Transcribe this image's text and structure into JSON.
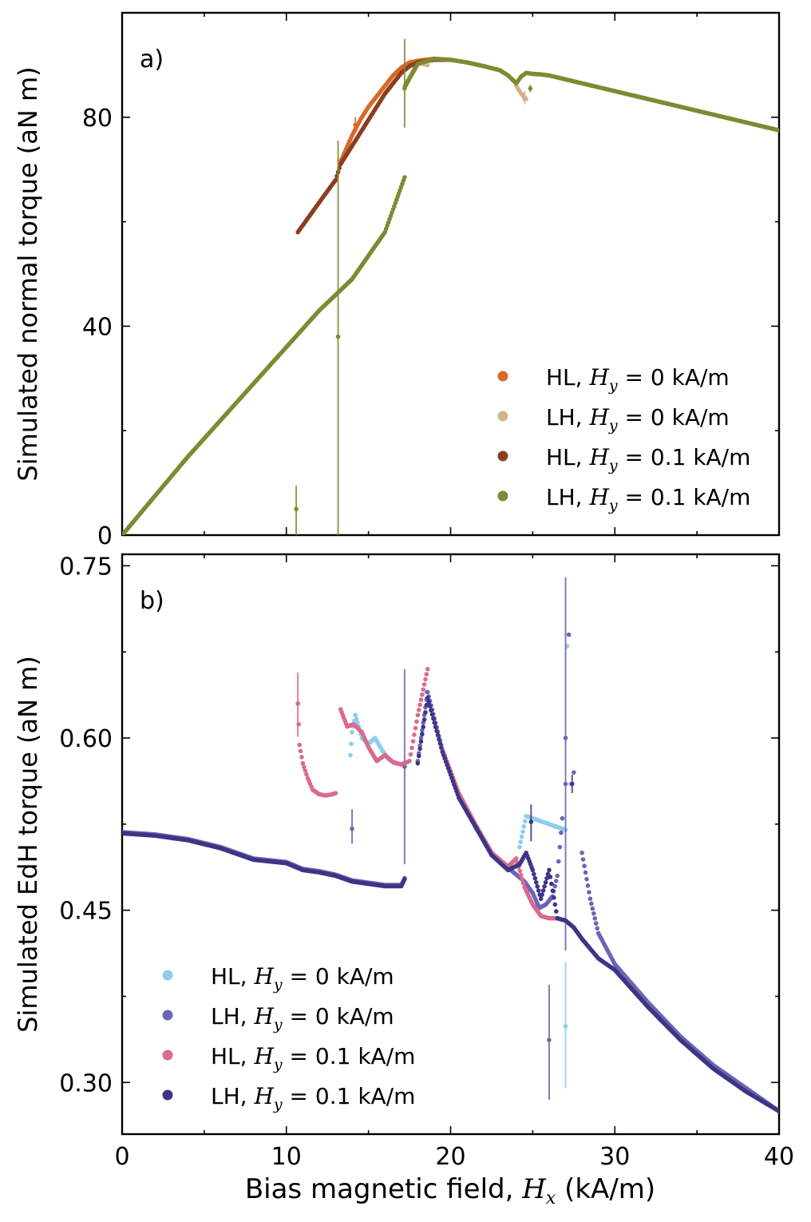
{
  "chart_data": [
    {
      "type": "scatter",
      "panel_label": "a)",
      "ylabel": "Simulated normal torque (aN m)",
      "xlim": [
        0,
        40
      ],
      "ylim": [
        0,
        100
      ],
      "yticks": [
        0,
        40,
        80
      ],
      "legend_position": "lower-right",
      "series": [
        {
          "name": "HL, H_y = 0 kA/m",
          "label_prefix": "HL, ",
          "label_suffix": " = 0 kA/m",
          "color": "#d9692a",
          "x": [
            13.3,
            14.0,
            14.5,
            15.0,
            15.5,
            16.0,
            16.5,
            17.0,
            17.5,
            18.0,
            18.5,
            19.0
          ],
          "y": [
            71.5,
            76.5,
            79.5,
            82.0,
            84.0,
            86.0,
            88.0,
            89.5,
            90.5,
            90.8,
            91.0,
            91.2
          ],
          "errorbars": [
            {
              "x": 14.2,
              "y": 78.5,
              "lo": 77,
              "hi": 80
            }
          ]
        },
        {
          "name": "LH, H_y = 0 kA/m",
          "label_prefix": "LH, ",
          "label_suffix": " = 0 kA/m",
          "color": "#d2b48c",
          "x": [
            17.2,
            18.0,
            18.6,
            24.0,
            24.3,
            24.6
          ],
          "y": [
            86.0,
            90.5,
            90.0,
            86.0,
            84.5,
            83.5
          ],
          "errorbars": [
            {
              "x": 24.5,
              "y": 83.5,
              "lo": 82.5,
              "hi": 85.0
            }
          ]
        },
        {
          "name": "HL, H_y = 0.1 kA/m",
          "label_prefix": "HL, ",
          "label_suffix": " = 0.1 kA/m",
          "color": "#8b3e1e",
          "x": [
            10.7,
            11.5,
            12.3,
            13.0,
            13.3,
            14.0,
            15.0,
            16.0,
            17.0,
            17.5,
            18.0,
            19.0,
            20.0
          ],
          "y": [
            58.0,
            61.5,
            65.0,
            68.0,
            71.0,
            74.5,
            79.5,
            84.5,
            88.5,
            89.8,
            90.5,
            91.0,
            91.0
          ],
          "errorbars": []
        },
        {
          "name": "LH, H_y = 0.1 kA/m",
          "label_prefix": "LH, ",
          "label_suffix": " = 0.1 kA/m",
          "color": "#7f8a32",
          "x": [
            0,
            2,
            4,
            6,
            8,
            10,
            12,
            14,
            16,
            17.2,
            17.25,
            18,
            19,
            20,
            21,
            22,
            23,
            23.5,
            24,
            24.3,
            24.6,
            25,
            25.5,
            26,
            28,
            30,
            32,
            34,
            36,
            38,
            40
          ],
          "y": [
            0,
            7.5,
            15,
            22,
            29,
            36,
            43,
            49,
            58,
            68.5,
            86,
            90.2,
            91.2,
            91.0,
            90.5,
            89.8,
            89.0,
            88.0,
            86.5,
            87.8,
            88.5,
            88.3,
            88.2,
            88.0,
            86.5,
            85.0,
            83.5,
            82.0,
            80.5,
            79.0,
            77.5
          ],
          "errorbars": [
            {
              "x": 10.6,
              "y": 5,
              "lo": 0,
              "hi": 9.5
            },
            {
              "x": 13.15,
              "y": 38,
              "lo": 0,
              "hi": 75.5
            },
            {
              "x": 17.2,
              "y": 85.5,
              "lo": 78,
              "hi": 95
            },
            {
              "x": 24.85,
              "y": 85.5,
              "lo": 84.8,
              "hi": 86.2
            }
          ]
        }
      ]
    },
    {
      "type": "scatter",
      "panel_label": "b)",
      "ylabel": "Simulated EdH torque (aN m)",
      "xlabel_prefix": "Bias magnetic field, ",
      "xlabel_suffix": " (kA/m)",
      "xlim": [
        0,
        40
      ],
      "ylim": [
        0.255,
        0.76
      ],
      "xticks": [
        0,
        10,
        20,
        30,
        40
      ],
      "yticks": [
        0.3,
        0.45,
        0.6,
        0.75
      ],
      "ytick_labels": [
        "0.30",
        "0.45",
        "0.60",
        "0.75"
      ],
      "legend_position": "lower-left",
      "series": [
        {
          "name": "HL, H_y = 0 kA/m",
          "label_prefix": "HL, ",
          "label_suffix": " = 0 kA/m",
          "color": "#8ecdf0",
          "x": [
            13.9,
            14.0,
            14.2,
            14.6,
            15.0,
            15.4,
            15.8,
            16.2,
            16.6,
            17.0,
            18.5,
            24.2,
            24.6,
            27.0,
            27.1,
            27.3
          ],
          "y": [
            0.585,
            0.605,
            0.62,
            0.6,
            0.595,
            0.6,
            0.59,
            0.582,
            0.578,
            0.577,
            0.64,
            0.505,
            0.532,
            0.52,
            0.68,
            0.56
          ],
          "errorbars": [
            {
              "x": 27.0,
              "y": 0.349,
              "lo": 0.295,
              "hi": 0.405
            }
          ]
        },
        {
          "name": "LH, H_y = 0 kA/m",
          "label_prefix": "LH, ",
          "label_suffix": " = 0 kA/m",
          "color": "#6a66b4",
          "x": [
            0,
            2,
            4,
            6,
            8,
            10,
            11,
            12,
            13,
            14,
            15,
            16,
            17,
            17.2,
            18.0,
            18.6,
            19.5,
            20.5,
            21.5,
            22.5,
            23.5,
            24.5,
            25.0,
            25.4,
            25.8,
            26.2,
            26.5,
            26.8,
            27.0,
            27.2,
            27.5,
            28.0,
            28.5,
            29.0,
            30,
            32,
            34,
            36,
            38,
            40
          ],
          "y": [
            0.518,
            0.516,
            0.512,
            0.505,
            0.495,
            0.492,
            0.486,
            0.484,
            0.481,
            0.476,
            0.474,
            0.472,
            0.472,
            0.478,
            0.58,
            0.64,
            0.59,
            0.55,
            0.525,
            0.5,
            0.487,
            0.475,
            0.465,
            0.452,
            0.455,
            0.462,
            0.48,
            0.53,
            0.6,
            0.69,
            0.57,
            0.5,
            0.46,
            0.43,
            0.403,
            0.37,
            0.34,
            0.315,
            0.295,
            0.275
          ],
          "errorbars": [
            {
              "x": 14.0,
              "y": 0.521,
              "lo": 0.508,
              "hi": 0.538
            },
            {
              "x": 17.2,
              "y": 0.575,
              "lo": 0.49,
              "hi": 0.66
            },
            {
              "x": 26.0,
              "y": 0.337,
              "lo": 0.285,
              "hi": 0.385
            },
            {
              "x": 27.0,
              "y": 0.56,
              "lo": 0.415,
              "hi": 0.74
            }
          ]
        },
        {
          "name": "HL, H_y = 0.1 kA/m",
          "label_prefix": "HL, ",
          "label_suffix": " = 0.1 kA/m",
          "color": "#d96b8f",
          "x": [
            10.7,
            10.8,
            11.0,
            11.3,
            11.6,
            12.0,
            12.4,
            12.8,
            13.0,
            13.3,
            13.7,
            14.1,
            14.6,
            15.0,
            15.5,
            16.0,
            16.5,
            17.0,
            17.5,
            18.0,
            18.6,
            19.5,
            20.5,
            21.5,
            22.5,
            23.5,
            24.0,
            24.5,
            25.0,
            25.5,
            26.0,
            26.5
          ],
          "y": [
            0.63,
            0.594,
            0.578,
            0.565,
            0.555,
            0.551,
            0.55,
            0.551,
            0.552,
            0.625,
            0.61,
            0.612,
            0.605,
            0.592,
            0.58,
            0.585,
            0.579,
            0.577,
            0.58,
            0.62,
            0.66,
            0.59,
            0.552,
            0.525,
            0.5,
            0.488,
            0.495,
            0.47,
            0.455,
            0.445,
            0.443,
            0.443
          ],
          "errorbars": [
            {
              "x": 10.7,
              "y": 0.63,
              "lo": 0.601,
              "hi": 0.657
            }
          ]
        },
        {
          "name": "LH, H_y = 0.1 kA/m",
          "label_prefix": "LH, ",
          "label_suffix": " = 0.1 kA/m",
          "color": "#3d3585",
          "x": [
            0,
            2,
            4,
            6,
            8,
            10,
            11,
            12,
            13,
            14,
            15,
            16,
            17,
            17.2,
            18.0,
            18.6,
            19.5,
            20.5,
            21.5,
            22.5,
            23.5,
            24.2,
            24.6,
            25.0,
            25.5,
            26.0,
            26.5,
            27.0,
            27.5,
            28.0,
            29.0,
            30,
            32,
            34,
            36,
            38,
            40
          ],
          "y": [
            0.517,
            0.515,
            0.511,
            0.504,
            0.494,
            0.491,
            0.485,
            0.483,
            0.48,
            0.475,
            0.473,
            0.471,
            0.471,
            0.477,
            0.578,
            0.635,
            0.588,
            0.548,
            0.523,
            0.498,
            0.485,
            0.49,
            0.5,
            0.485,
            0.46,
            0.485,
            0.443,
            0.441,
            0.435,
            0.425,
            0.408,
            0.398,
            0.366,
            0.337,
            0.312,
            0.292,
            0.275
          ],
          "errorbars": [
            {
              "x": 24.9,
              "y": 0.527,
              "lo": 0.51,
              "hi": 0.542
            },
            {
              "x": 27.4,
              "y": 0.56,
              "lo": 0.552,
              "hi": 0.568
            }
          ]
        }
      ]
    }
  ],
  "legend_math_symbol": "Hy",
  "xlabel_math_symbol": "Hx"
}
